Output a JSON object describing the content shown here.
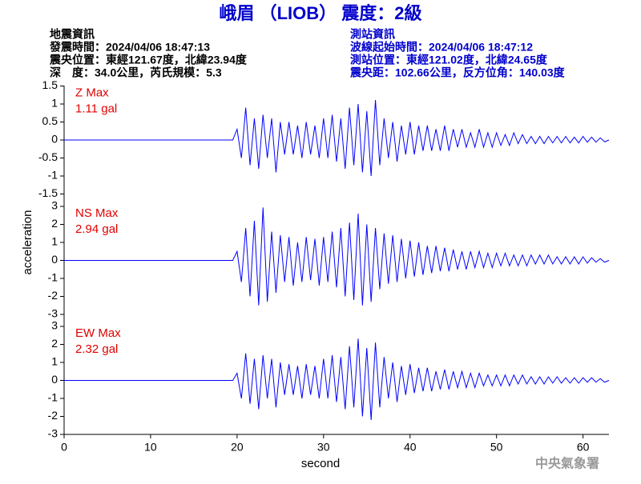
{
  "header": {
    "title": "峨眉 （LIOB） 震度：2級",
    "left": [
      "地震資訊",
      "發震時間：2024/04/06 18:47:13",
      "震央位置：東經121.67度，北緯23.94度",
      "深　度：34.0公里，芮氏規模：5.3"
    ],
    "right": [
      "測站資訊",
      "波線起始時間：2024/04/06 18:47:12",
      "測站位置：東經121.02度，北緯24.65度",
      "震央距：102.66公里，反方位角：140.03度"
    ]
  },
  "footer": "中央氣象署",
  "chart_data": [
    {
      "type": "line",
      "label": "Z Max",
      "max_label": "1.11 gal",
      "color": "#0000ff",
      "xlim": [
        0,
        63
      ],
      "ylim": [
        -1.5,
        1.5
      ],
      "yticks": [
        -1.5,
        -1,
        -0.5,
        0,
        0.5,
        1,
        1.5
      ],
      "x": [
        0,
        19.5,
        20,
        20.5,
        21,
        21.5,
        22,
        22.5,
        23,
        23.5,
        24,
        24.5,
        25,
        25.5,
        26,
        26.5,
        27,
        27.5,
        28,
        28.5,
        29,
        29.5,
        30,
        30.5,
        31,
        31.5,
        32,
        32.5,
        33,
        33.5,
        34,
        34.5,
        35,
        35.5,
        36,
        36.5,
        37,
        37.5,
        38,
        38.5,
        39,
        39.5,
        40,
        40.5,
        41,
        41.5,
        42,
        42.5,
        43,
        43.5,
        44,
        44.5,
        45,
        45.5,
        46,
        46.5,
        47,
        47.5,
        48,
        48.5,
        49,
        49.5,
        50,
        50.5,
        51,
        51.5,
        52,
        52.5,
        53,
        53.5,
        54,
        54.5,
        55,
        55.5,
        56,
        56.5,
        57,
        57.5,
        58,
        58.5,
        59,
        59.5,
        60,
        60.5,
        61,
        61.5,
        62,
        62.5,
        63
      ],
      "values": [
        0,
        0,
        0.3,
        -0.5,
        0.9,
        -0.7,
        0.6,
        -0.8,
        0.7,
        -0.5,
        0.6,
        -0.9,
        0.5,
        -0.4,
        0.5,
        -0.4,
        0.4,
        -0.5,
        0.5,
        -0.4,
        0.4,
        -0.5,
        0.6,
        -0.5,
        0.7,
        -0.6,
        0.6,
        -0.8,
        0.9,
        -0.7,
        1.0,
        -0.9,
        0.8,
        -1.0,
        1.11,
        -0.7,
        0.6,
        -0.5,
        0.5,
        -0.6,
        0.4,
        -0.4,
        0.5,
        -0.4,
        0.4,
        -0.3,
        0.4,
        -0.3,
        0.3,
        -0.3,
        0.4,
        -0.3,
        0.3,
        -0.2,
        0.3,
        -0.2,
        0.2,
        -0.2,
        0.3,
        -0.2,
        0.2,
        -0.2,
        0.2,
        -0.15,
        0.15,
        -0.15,
        0.2,
        -0.1,
        0.15,
        -0.1,
        0.1,
        -0.1,
        0.1,
        -0.1,
        0.1,
        -0.08,
        0.1,
        -0.08,
        0.1,
        -0.08,
        0.08,
        -0.08,
        0.1,
        -0.06,
        0.08,
        -0.06,
        0.06,
        -0.05,
        0
      ]
    },
    {
      "type": "line",
      "label": "NS Max",
      "max_label": "2.94 gal",
      "color": "#0000ff",
      "ylabel": "acceleration",
      "xlim": [
        0,
        63
      ],
      "ylim": [
        -3,
        3
      ],
      "yticks": [
        -3,
        -2,
        -1,
        0,
        1,
        2,
        3
      ],
      "x": [
        0,
        19.5,
        20,
        20.5,
        21,
        21.5,
        22,
        22.5,
        23,
        23.5,
        24,
        24.5,
        25,
        25.5,
        26,
        26.5,
        27,
        27.5,
        28,
        28.5,
        29,
        29.5,
        30,
        30.5,
        31,
        31.5,
        32,
        32.5,
        33,
        33.5,
        34,
        34.5,
        35,
        35.5,
        36,
        36.5,
        37,
        37.5,
        38,
        38.5,
        39,
        39.5,
        40,
        40.5,
        41,
        41.5,
        42,
        42.5,
        43,
        43.5,
        44,
        44.5,
        45,
        45.5,
        46,
        46.5,
        47,
        47.5,
        48,
        48.5,
        49,
        49.5,
        50,
        50.5,
        51,
        51.5,
        52,
        52.5,
        53,
        53.5,
        54,
        54.5,
        55,
        55.5,
        56,
        56.5,
        57,
        57.5,
        58,
        58.5,
        59,
        59.5,
        60,
        60.5,
        61,
        61.5,
        62,
        62.5,
        63
      ],
      "values": [
        0,
        0,
        0.5,
        -1.2,
        1.8,
        -2.0,
        2.2,
        -2.5,
        2.94,
        -2.3,
        1.6,
        -1.8,
        1.4,
        -1.2,
        1.3,
        -1.4,
        1.0,
        -1.2,
        1.3,
        -1.1,
        1.2,
        -1.4,
        1.3,
        -1.2,
        1.6,
        -1.5,
        1.8,
        -2.0,
        2.1,
        -2.2,
        2.6,
        -2.5,
        2.0,
        -2.3,
        1.8,
        -1.6,
        1.5,
        -1.3,
        1.4,
        -1.2,
        1.2,
        -1.0,
        1.1,
        -0.9,
        1.0,
        -0.8,
        0.8,
        -0.7,
        0.8,
        -0.6,
        0.7,
        -0.6,
        0.6,
        -0.5,
        0.5,
        -0.5,
        0.5,
        -0.4,
        0.5,
        -0.4,
        0.4,
        -0.4,
        0.4,
        -0.3,
        0.4,
        -0.3,
        0.3,
        -0.3,
        0.3,
        -0.3,
        0.3,
        -0.2,
        0.3,
        -0.2,
        0.3,
        -0.2,
        0.2,
        -0.2,
        0.2,
        -0.2,
        0.2,
        -0.2,
        0.2,
        -0.15,
        0.15,
        -0.1,
        0.1,
        -0.1,
        0
      ]
    },
    {
      "type": "line",
      "label": "EW Max",
      "max_label": "2.32 gal",
      "color": "#0000ff",
      "xlabel": "second",
      "xlim": [
        0,
        63
      ],
      "xticks": [
        0,
        10,
        20,
        30,
        40,
        50,
        60
      ],
      "ylim": [
        -3,
        3
      ],
      "yticks": [
        -3,
        -2,
        -1,
        0,
        1,
        2,
        3
      ],
      "x": [
        0,
        19.5,
        20,
        20.5,
        21,
        21.5,
        22,
        22.5,
        23,
        23.5,
        24,
        24.5,
        25,
        25.5,
        26,
        26.5,
        27,
        27.5,
        28,
        28.5,
        29,
        29.5,
        30,
        30.5,
        31,
        31.5,
        32,
        32.5,
        33,
        33.5,
        34,
        34.5,
        35,
        35.5,
        36,
        36.5,
        37,
        37.5,
        38,
        38.5,
        39,
        39.5,
        40,
        40.5,
        41,
        41.5,
        42,
        42.5,
        43,
        43.5,
        44,
        44.5,
        45,
        45.5,
        46,
        46.5,
        47,
        47.5,
        48,
        48.5,
        49,
        49.5,
        50,
        50.5,
        51,
        51.5,
        52,
        52.5,
        53,
        53.5,
        54,
        54.5,
        55,
        55.5,
        56,
        56.5,
        57,
        57.5,
        58,
        58.5,
        59,
        59.5,
        60,
        60.5,
        61,
        61.5,
        62,
        62.5,
        63
      ],
      "values": [
        0,
        0,
        0.4,
        -1.0,
        1.5,
        -1.3,
        1.2,
        -1.6,
        1.4,
        -1.0,
        1.2,
        -1.5,
        1.0,
        -0.8,
        0.9,
        -0.8,
        0.8,
        -1.0,
        0.9,
        -0.8,
        0.8,
        -1.0,
        1.2,
        -1.0,
        1.4,
        -1.2,
        1.3,
        -1.6,
        1.9,
        -1.5,
        2.32,
        -2.0,
        1.8,
        -2.2,
        2.1,
        -1.5,
        1.3,
        -1.0,
        1.0,
        -1.2,
        0.8,
        -0.8,
        0.9,
        -0.7,
        0.7,
        -0.6,
        0.7,
        -0.6,
        0.5,
        -0.5,
        0.6,
        -0.5,
        0.5,
        -0.4,
        0.5,
        -0.4,
        0.4,
        -0.4,
        0.4,
        -0.3,
        0.3,
        -0.3,
        0.3,
        -0.3,
        0.3,
        -0.3,
        0.3,
        -0.2,
        0.3,
        -0.2,
        0.2,
        -0.2,
        0.2,
        -0.2,
        0.2,
        -0.15,
        0.2,
        -0.15,
        0.15,
        -0.15,
        0.15,
        -0.15,
        0.15,
        -0.1,
        0.15,
        -0.1,
        0.1,
        -0.1,
        0
      ]
    }
  ]
}
